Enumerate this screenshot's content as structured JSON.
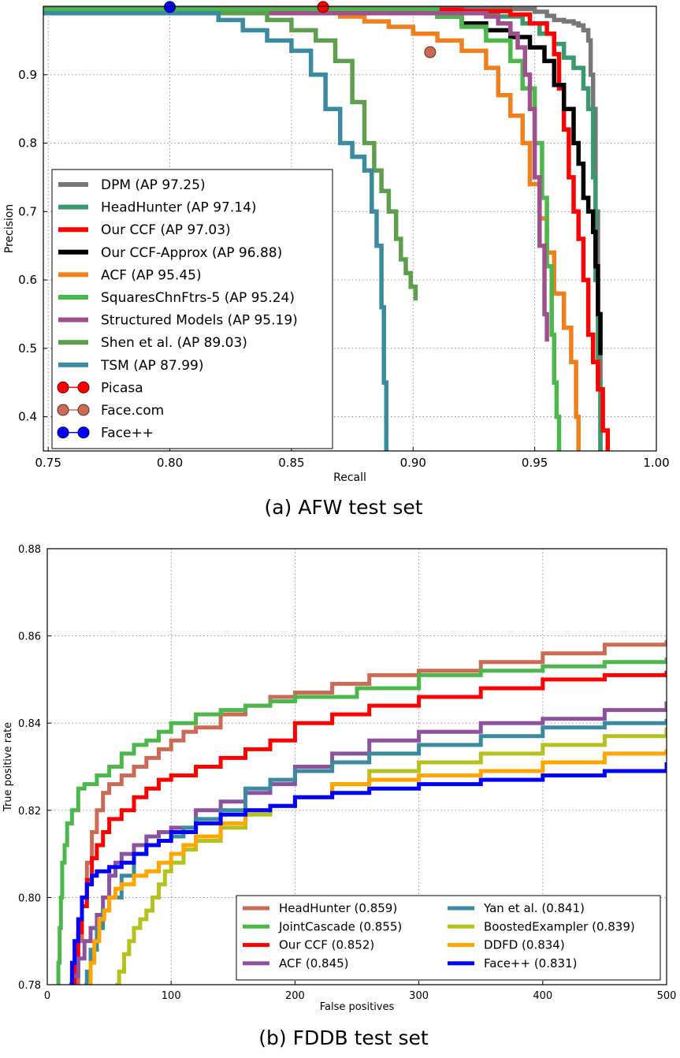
{
  "chart_data": [
    {
      "type": "line",
      "caption": "(a) AFW test set",
      "xlabel": "Recall",
      "ylabel": "Precision",
      "xlim": [
        0.748,
        1.0
      ],
      "ylim": [
        0.35,
        1.0
      ],
      "xticks": [
        "0.75",
        "0.80",
        "0.85",
        "0.90",
        "0.95",
        "1.00"
      ],
      "yticks": [
        "0.4",
        "0.5",
        "0.6",
        "0.7",
        "0.8",
        "0.9"
      ],
      "grid": true,
      "legend_position": "bottom-left",
      "series": [
        {
          "name": "DPM (AP 97.25)",
          "color": "#777777",
          "x": [
            0.748,
            0.9,
            0.92,
            0.94,
            0.95,
            0.955,
            0.958,
            0.962,
            0.966,
            0.968,
            0.97,
            0.972,
            0.973,
            0.974,
            0.975,
            0.976,
            0.977
          ],
          "y": [
            0.999,
            0.999,
            0.998,
            0.996,
            0.992,
            0.986,
            0.98,
            0.978,
            0.975,
            0.972,
            0.965,
            0.95,
            0.9,
            0.85,
            0.7,
            0.55,
            0.35
          ]
        },
        {
          "name": "HeadHunter (AP 97.14)",
          "color": "#3a9a6e",
          "x": [
            0.748,
            0.88,
            0.9,
            0.92,
            0.935,
            0.945,
            0.952,
            0.958,
            0.962,
            0.966,
            0.97,
            0.972,
            0.974,
            0.975,
            0.976,
            0.977
          ],
          "y": [
            0.995,
            0.995,
            0.993,
            0.99,
            0.985,
            0.975,
            0.96,
            0.945,
            0.925,
            0.91,
            0.88,
            0.85,
            0.75,
            0.6,
            0.45,
            0.35
          ]
        },
        {
          "name": "Our CCF (AP 97.03)",
          "color": "#ff0000",
          "x": [
            0.748,
            0.9,
            0.92,
            0.94,
            0.948,
            0.955,
            0.958,
            0.96,
            0.962,
            0.964,
            0.966,
            0.968,
            0.97,
            0.972,
            0.974,
            0.976,
            0.978,
            0.98
          ],
          "y": [
            0.995,
            0.995,
            0.993,
            0.988,
            0.975,
            0.96,
            0.93,
            0.88,
            0.82,
            0.75,
            0.7,
            0.66,
            0.6,
            0.52,
            0.48,
            0.44,
            0.38,
            0.35
          ]
        },
        {
          "name": "Our CCF-Approx (AP 96.88)",
          "color": "#000000",
          "x": [
            0.748,
            0.9,
            0.91,
            0.92,
            0.93,
            0.94,
            0.948,
            0.954,
            0.958,
            0.962,
            0.966,
            0.968,
            0.97,
            0.972,
            0.974,
            0.975,
            0.976,
            0.977
          ],
          "y": [
            0.993,
            0.993,
            0.985,
            0.975,
            0.965,
            0.955,
            0.94,
            0.92,
            0.885,
            0.85,
            0.8,
            0.77,
            0.72,
            0.7,
            0.67,
            0.62,
            0.55,
            0.49
          ]
        },
        {
          "name": "ACF (AP 95.45)",
          "color": "#f07f1e",
          "x": [
            0.748,
            0.85,
            0.87,
            0.88,
            0.89,
            0.9,
            0.91,
            0.92,
            0.93,
            0.935,
            0.94,
            0.945,
            0.948,
            0.952,
            0.955,
            0.958,
            0.962,
            0.965,
            0.967,
            0.968
          ],
          "y": [
            0.99,
            0.99,
            0.985,
            0.978,
            0.97,
            0.96,
            0.95,
            0.935,
            0.91,
            0.87,
            0.84,
            0.8,
            0.74,
            0.69,
            0.64,
            0.58,
            0.53,
            0.48,
            0.4,
            0.35
          ]
        },
        {
          "name": "SquaresChnFtrs-5 (AP 95.24)",
          "color": "#4cb84c",
          "x": [
            0.748,
            0.9,
            0.91,
            0.92,
            0.93,
            0.94,
            0.945,
            0.95,
            0.953,
            0.955,
            0.957,
            0.958,
            0.959,
            0.96
          ],
          "y": [
            0.995,
            0.995,
            0.985,
            0.97,
            0.95,
            0.92,
            0.88,
            0.8,
            0.72,
            0.62,
            0.52,
            0.45,
            0.4,
            0.35
          ]
        },
        {
          "name": "Structured Models (AP 95.19)",
          "color": "#a0508c",
          "x": [
            0.748,
            0.92,
            0.93,
            0.935,
            0.94,
            0.943,
            0.946,
            0.948,
            0.95,
            0.952,
            0.954,
            0.955
          ],
          "y": [
            0.99,
            0.99,
            0.985,
            0.975,
            0.96,
            0.94,
            0.9,
            0.85,
            0.75,
            0.65,
            0.55,
            0.51
          ]
        },
        {
          "name": "Shen et al. (AP 89.03)",
          "color": "#5f9e4c",
          "x": [
            0.748,
            0.83,
            0.84,
            0.85,
            0.86,
            0.868,
            0.875,
            0.88,
            0.884,
            0.887,
            0.89,
            0.893,
            0.895,
            0.897,
            0.899,
            0.901
          ],
          "y": [
            0.99,
            0.99,
            0.98,
            0.965,
            0.95,
            0.92,
            0.86,
            0.8,
            0.76,
            0.73,
            0.7,
            0.66,
            0.63,
            0.61,
            0.59,
            0.57
          ]
        },
        {
          "name": "TSM (AP 87.99)",
          "color": "#3a8aa0",
          "x": [
            0.748,
            0.81,
            0.82,
            0.83,
            0.84,
            0.85,
            0.858,
            0.864,
            0.87,
            0.875,
            0.88,
            0.883,
            0.885,
            0.887,
            0.888,
            0.889
          ],
          "y": [
            0.99,
            0.99,
            0.98,
            0.965,
            0.95,
            0.935,
            0.9,
            0.85,
            0.8,
            0.78,
            0.76,
            0.7,
            0.65,
            0.56,
            0.45,
            0.35
          ]
        }
      ],
      "points": [
        {
          "name": "Picasa",
          "color": "#ff0000",
          "edge": "#6a0000",
          "x": 0.863,
          "y": 0.999
        },
        {
          "name": "Face.com",
          "color": "#cd6a55",
          "edge": "#5a2a20",
          "x": 0.907,
          "y": 0.933
        },
        {
          "name": "Face++",
          "color": "#0000ff",
          "edge": "#00005a",
          "x": 0.8,
          "y": 0.999
        }
      ]
    },
    {
      "type": "line",
      "caption": "(b) FDDB test set",
      "xlabel": "False positives",
      "ylabel": "True positive rate",
      "xlim": [
        0,
        500
      ],
      "ylim": [
        0.78,
        0.88
      ],
      "xticks": [
        "0",
        "100",
        "200",
        "300",
        "400",
        "500"
      ],
      "yticks": [
        "0.78",
        "0.80",
        "0.82",
        "0.84",
        "0.86",
        "0.88"
      ],
      "grid": true,
      "legend_position": "bottom-right",
      "series": [
        {
          "name": "HeadHunter (0.859)",
          "color": "#cd6a55",
          "x": [
            22,
            25,
            28,
            32,
            36,
            40,
            45,
            50,
            60,
            70,
            80,
            90,
            100,
            110,
            120,
            140,
            160,
            180,
            200,
            230,
            260,
            300,
            350,
            400,
            450,
            500
          ],
          "y": [
            0.78,
            0.79,
            0.8,
            0.808,
            0.815,
            0.82,
            0.824,
            0.826,
            0.828,
            0.83,
            0.832,
            0.834,
            0.836,
            0.838,
            0.839,
            0.842,
            0.844,
            0.846,
            0.847,
            0.849,
            0.851,
            0.852,
            0.854,
            0.856,
            0.858,
            0.859
          ]
        },
        {
          "name": "JointCascade (0.855)",
          "color": "#4cb84c",
          "x": [
            8,
            9,
            10,
            11,
            12,
            14,
            16,
            20,
            25,
            30,
            40,
            50,
            60,
            70,
            80,
            90,
            100,
            120,
            140,
            160,
            180,
            200,
            250,
            300,
            350,
            400,
            450,
            500
          ],
          "y": [
            0.78,
            0.785,
            0.793,
            0.8,
            0.808,
            0.812,
            0.817,
            0.82,
            0.825,
            0.826,
            0.828,
            0.83,
            0.833,
            0.835,
            0.836,
            0.838,
            0.84,
            0.842,
            0.843,
            0.844,
            0.845,
            0.846,
            0.848,
            0.851,
            0.852,
            0.853,
            0.854,
            0.855
          ]
        },
        {
          "name": "Our CCF (0.852)",
          "color": "#ff0000",
          "x": [
            20,
            22,
            25,
            28,
            32,
            36,
            40,
            45,
            50,
            60,
            70,
            80,
            90,
            100,
            120,
            140,
            160,
            180,
            200,
            230,
            260,
            300,
            350,
            400,
            450,
            500
          ],
          "y": [
            0.78,
            0.785,
            0.792,
            0.798,
            0.804,
            0.809,
            0.812,
            0.815,
            0.818,
            0.82,
            0.823,
            0.825,
            0.827,
            0.828,
            0.83,
            0.832,
            0.834,
            0.836,
            0.84,
            0.842,
            0.844,
            0.846,
            0.848,
            0.85,
            0.851,
            0.852
          ]
        },
        {
          "name": "ACF (0.845)",
          "color": "#8c52a0",
          "x": [
            18,
            20,
            25,
            30,
            35,
            40,
            45,
            50,
            55,
            60,
            70,
            80,
            90,
            100,
            120,
            140,
            160,
            180,
            200,
            230,
            260,
            300,
            350,
            400,
            450,
            500
          ],
          "y": [
            0.78,
            0.782,
            0.786,
            0.79,
            0.793,
            0.796,
            0.8,
            0.805,
            0.808,
            0.81,
            0.812,
            0.814,
            0.815,
            0.816,
            0.82,
            0.822,
            0.824,
            0.826,
            0.83,
            0.833,
            0.836,
            0.838,
            0.84,
            0.841,
            0.843,
            0.845
          ]
        },
        {
          "name": "Yan et al. (0.841)",
          "color": "#3a8aa0",
          "x": [
            30,
            32,
            35,
            40,
            45,
            50,
            60,
            70,
            80,
            90,
            100,
            110,
            120,
            140,
            160,
            180,
            200,
            230,
            260,
            300,
            350,
            400,
            450,
            500
          ],
          "y": [
            0.78,
            0.783,
            0.788,
            0.793,
            0.797,
            0.8,
            0.805,
            0.81,
            0.812,
            0.813,
            0.814,
            0.816,
            0.818,
            0.82,
            0.825,
            0.827,
            0.829,
            0.831,
            0.833,
            0.835,
            0.837,
            0.839,
            0.84,
            0.841
          ]
        },
        {
          "name": "BoostedExampler (0.839)",
          "color": "#b5c21e",
          "x": [
            55,
            58,
            62,
            66,
            70,
            75,
            80,
            85,
            90,
            95,
            100,
            110,
            120,
            140,
            160,
            180,
            200,
            230,
            260,
            300,
            350,
            400,
            450,
            500
          ],
          "y": [
            0.78,
            0.783,
            0.787,
            0.79,
            0.793,
            0.795,
            0.797,
            0.8,
            0.803,
            0.806,
            0.808,
            0.811,
            0.813,
            0.816,
            0.819,
            0.821,
            0.823,
            0.826,
            0.829,
            0.831,
            0.833,
            0.835,
            0.837,
            0.839
          ]
        },
        {
          "name": "DDFD (0.834)",
          "color": "#ffa500",
          "x": [
            33,
            35,
            38,
            42,
            46,
            50,
            55,
            60,
            70,
            80,
            90,
            100,
            110,
            120,
            140,
            160,
            180,
            200,
            230,
            260,
            300,
            350,
            400,
            450,
            500
          ],
          "y": [
            0.78,
            0.785,
            0.79,
            0.795,
            0.797,
            0.8,
            0.802,
            0.803,
            0.805,
            0.806,
            0.808,
            0.81,
            0.812,
            0.814,
            0.817,
            0.82,
            0.821,
            0.823,
            0.826,
            0.827,
            0.828,
            0.829,
            0.831,
            0.833,
            0.834
          ]
        },
        {
          "name": "Face++ (0.831)",
          "color": "#0000ff",
          "x": [
            18,
            20,
            22,
            25,
            28,
            32,
            36,
            40,
            45,
            50,
            60,
            70,
            80,
            90,
            100,
            120,
            140,
            160,
            180,
            200,
            230,
            260,
            300,
            350,
            400,
            450,
            500
          ],
          "y": [
            0.78,
            0.785,
            0.79,
            0.795,
            0.8,
            0.803,
            0.805,
            0.806,
            0.806,
            0.807,
            0.808,
            0.81,
            0.812,
            0.813,
            0.815,
            0.817,
            0.819,
            0.82,
            0.821,
            0.823,
            0.824,
            0.825,
            0.826,
            0.827,
            0.828,
            0.829,
            0.831
          ]
        }
      ]
    }
  ]
}
